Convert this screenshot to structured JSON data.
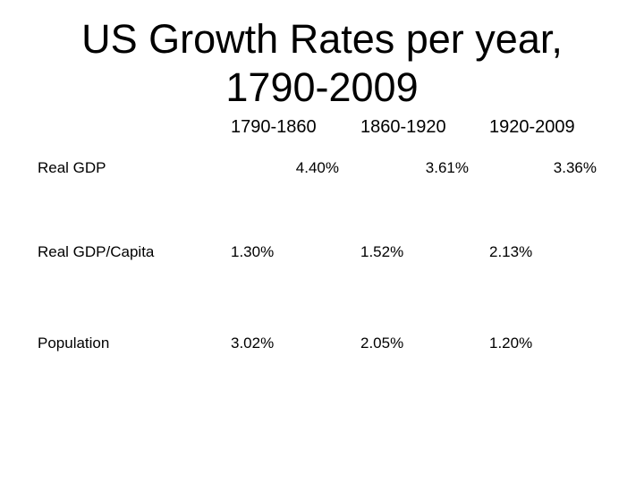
{
  "slide": {
    "title_line1": "US Growth Rates per year,",
    "title_line2": "1790-2009",
    "background_color": "#ffffff",
    "text_color": "#000000"
  },
  "table": {
    "column_headers": [
      "1790-1860",
      "1860-1920",
      "1920-2009"
    ],
    "rows": [
      {
        "label": "Real GDP",
        "values": [
          "4.40%",
          "3.61%",
          "3.36%"
        ]
      },
      {
        "label": "Real GDP/Capita",
        "values": [
          "1.30%",
          "1.52%",
          "2.13%"
        ]
      },
      {
        "label": "Population",
        "values": [
          "3.02%",
          "2.05%",
          "1.20%"
        ]
      }
    ]
  }
}
